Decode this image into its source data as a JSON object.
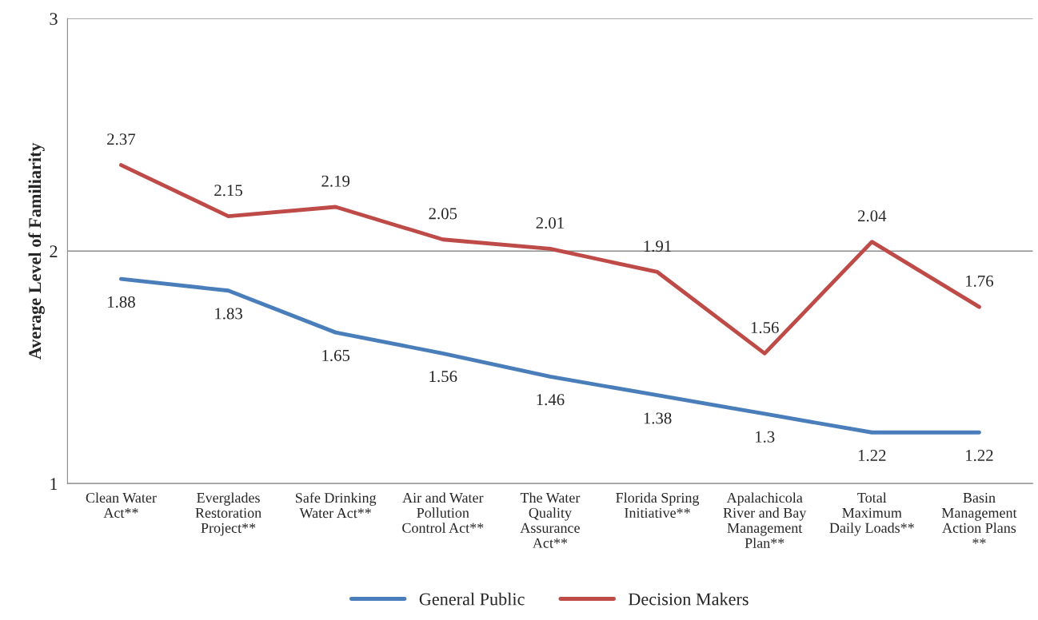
{
  "chart_data": {
    "type": "line",
    "ylabel": "Average Level of Familiarity",
    "categories": [
      "Clean Water\nAct**",
      "Everglades\nRestoration\nProject**",
      "Safe Drinking\nWater Act**",
      "Air and Water\nPollution\nControl Act**",
      "The Water\nQuality\nAssurance\nAct**",
      "Florida Spring\nInitiative**",
      "Apalachicola\nRiver and Bay\nManagement\nPlan**",
      "Total\nMaximum\nDaily Loads**",
      "Basin\nManagement\nAction Plans\n**"
    ],
    "series": [
      {
        "name": "General Public",
        "color": "#4a7ebb",
        "values": [
          1.88,
          1.83,
          1.65,
          1.56,
          1.46,
          1.38,
          1.3,
          1.22,
          1.22
        ]
      },
      {
        "name": "Decision Makers",
        "color": "#be4b48",
        "values": [
          2.37,
          2.15,
          2.19,
          2.05,
          2.01,
          1.91,
          1.56,
          2.04,
          1.76
        ]
      }
    ],
    "ylim": [
      1,
      3
    ],
    "yticks": [
      1,
      2,
      3
    ],
    "grid": "y",
    "legend": "bottom",
    "data_labels": true
  }
}
